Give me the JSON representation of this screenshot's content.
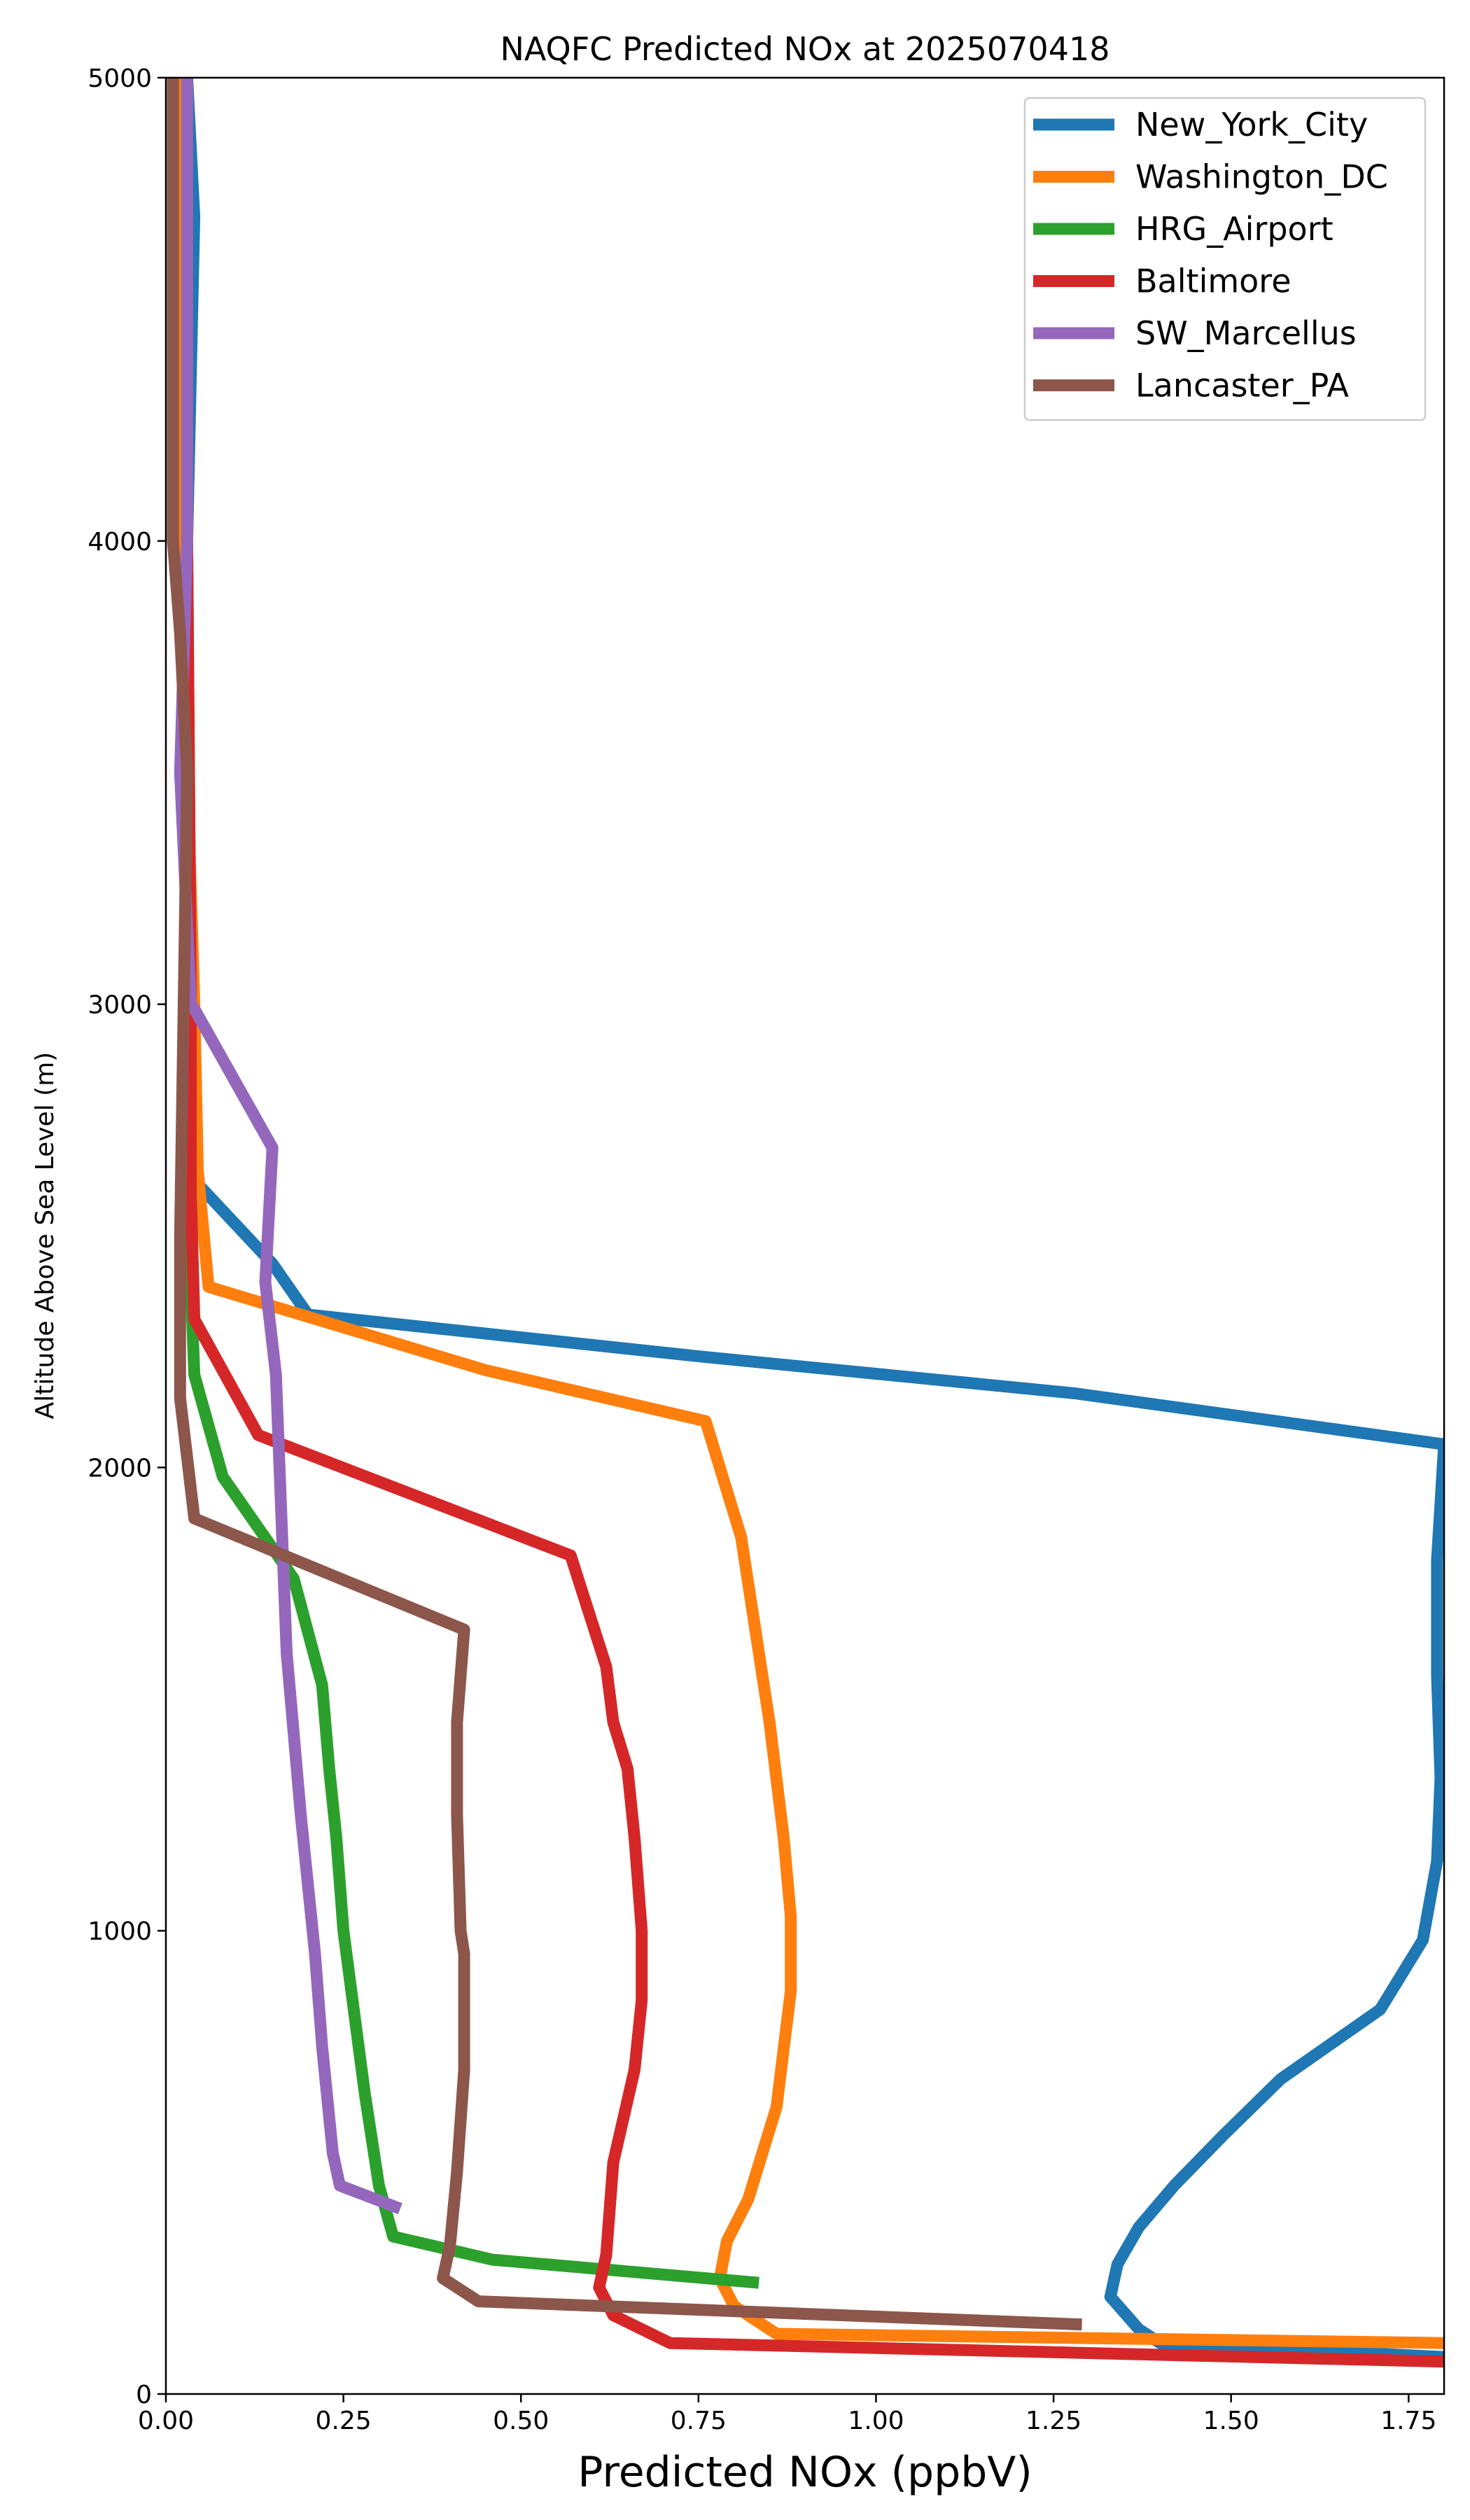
{
  "chart_data": {
    "type": "line",
    "title": "NAQFC Predicted NOx at 2025070418",
    "xlabel": "Predicted NOx (ppbV)",
    "ylabel": "Altitude Above Sea Level (m)",
    "xlim": [
      0,
      1.8
    ],
    "ylim": [
      0,
      5000
    ],
    "xticks": [
      "0.00",
      "0.25",
      "0.50",
      "0.75",
      "1.00",
      "1.25",
      "1.50",
      "1.75"
    ],
    "yticks": [
      "0",
      "1000",
      "2000",
      "3000",
      "4000",
      "5000"
    ],
    "legend_position": "top-right",
    "grid": false,
    "series": [
      {
        "name": "New_York_City",
        "color": "#1f77b4",
        "points": [
          [
            1.8,
            80
          ],
          [
            1.4,
            110
          ],
          [
            1.37,
            140
          ],
          [
            1.33,
            210
          ],
          [
            1.34,
            280
          ],
          [
            1.37,
            360
          ],
          [
            1.42,
            450
          ],
          [
            1.49,
            560
          ],
          [
            1.57,
            680
          ],
          [
            1.71,
            830
          ],
          [
            1.77,
            980
          ],
          [
            1.79,
            1150
          ],
          [
            1.795,
            1330
          ],
          [
            1.79,
            1550
          ],
          [
            1.79,
            1800
          ],
          [
            1.8,
            2050
          ],
          [
            1.28,
            2160
          ],
          [
            0.75,
            2240
          ],
          [
            0.2,
            2330
          ],
          [
            0.15,
            2440
          ],
          [
            0.04,
            2620
          ],
          [
            0.03,
            3000
          ],
          [
            0.03,
            4000
          ],
          [
            0.04,
            4700
          ],
          [
            0.03,
            5000
          ]
        ]
      },
      {
        "name": "Washington_DC",
        "color": "#ff7f0e",
        "points": [
          [
            1.8,
            110
          ],
          [
            0.86,
            130
          ],
          [
            0.8,
            190
          ],
          [
            0.78,
            250
          ],
          [
            0.79,
            330
          ],
          [
            0.82,
            420
          ],
          [
            0.86,
            620
          ],
          [
            0.88,
            870
          ],
          [
            0.88,
            1030
          ],
          [
            0.87,
            1200
          ],
          [
            0.85,
            1450
          ],
          [
            0.81,
            1850
          ],
          [
            0.76,
            2100
          ],
          [
            0.45,
            2210
          ],
          [
            0.06,
            2390
          ],
          [
            0.045,
            2640
          ],
          [
            0.04,
            3000
          ],
          [
            0.03,
            3500
          ],
          [
            0.02,
            4000
          ],
          [
            0.02,
            5000
          ]
        ]
      },
      {
        "name": "HRG_Airport",
        "color": "#2ca02c",
        "points": [
          [
            0.835,
            240
          ],
          [
            0.46,
            290
          ],
          [
            0.32,
            340
          ],
          [
            0.3,
            450
          ],
          [
            0.28,
            650
          ],
          [
            0.25,
            1000
          ],
          [
            0.24,
            1200
          ],
          [
            0.23,
            1350
          ],
          [
            0.22,
            1530
          ],
          [
            0.18,
            1760
          ],
          [
            0.08,
            1980
          ],
          [
            0.04,
            2200
          ],
          [
            0.035,
            2400
          ],
          [
            0.035,
            3000
          ],
          [
            0.03,
            4000
          ],
          [
            0.03,
            5000
          ]
        ]
      },
      {
        "name": "Baltimore",
        "color": "#d62728",
        "points": [
          [
            1.8,
            70
          ],
          [
            0.71,
            110
          ],
          [
            0.63,
            170
          ],
          [
            0.61,
            230
          ],
          [
            0.62,
            300
          ],
          [
            0.63,
            500
          ],
          [
            0.66,
            700
          ],
          [
            0.67,
            850
          ],
          [
            0.67,
            1000
          ],
          [
            0.66,
            1200
          ],
          [
            0.65,
            1350
          ],
          [
            0.63,
            1450
          ],
          [
            0.62,
            1570
          ],
          [
            0.57,
            1810
          ],
          [
            0.13,
            2070
          ],
          [
            0.04,
            2320
          ],
          [
            0.035,
            2600
          ],
          [
            0.035,
            3000
          ],
          [
            0.03,
            4000
          ],
          [
            0.03,
            5000
          ]
        ]
      },
      {
        "name": "SW_Marcellus",
        "color": "#9467bd",
        "points": [
          [
            0.33,
            400
          ],
          [
            0.245,
            450
          ],
          [
            0.235,
            520
          ],
          [
            0.22,
            750
          ],
          [
            0.21,
            950
          ],
          [
            0.19,
            1250
          ],
          [
            0.17,
            1600
          ],
          [
            0.165,
            1800
          ],
          [
            0.16,
            2000
          ],
          [
            0.155,
            2200
          ],
          [
            0.14,
            2400
          ],
          [
            0.15,
            2690
          ],
          [
            0.04,
            2990
          ],
          [
            0.035,
            3000
          ],
          [
            0.02,
            3500
          ],
          [
            0.03,
            4000
          ],
          [
            0.03,
            5000
          ]
        ]
      },
      {
        "name": "Lancaster_PA",
        "color": "#8c564b",
        "points": [
          [
            1.29,
            150
          ],
          [
            0.44,
            200
          ],
          [
            0.39,
            250
          ],
          [
            0.4,
            320
          ],
          [
            0.41,
            480
          ],
          [
            0.42,
            700
          ],
          [
            0.42,
            950
          ],
          [
            0.415,
            1000
          ],
          [
            0.41,
            1250
          ],
          [
            0.41,
            1450
          ],
          [
            0.42,
            1650
          ],
          [
            0.04,
            1890
          ],
          [
            0.02,
            2150
          ],
          [
            0.02,
            2500
          ],
          [
            0.025,
            3000
          ],
          [
            0.03,
            3500
          ],
          [
            0.02,
            3800
          ],
          [
            0.01,
            4000
          ],
          [
            0.01,
            5000
          ]
        ]
      }
    ]
  }
}
